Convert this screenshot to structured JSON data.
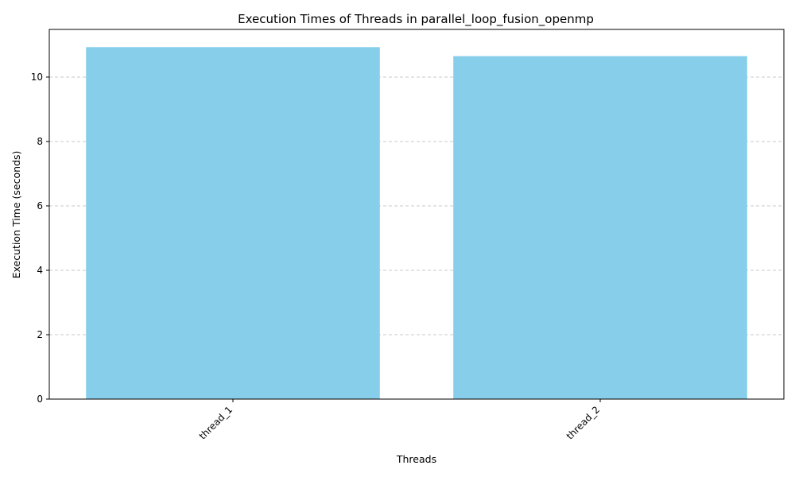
{
  "chart_data": {
    "type": "bar",
    "title": "Execution Times of Threads in parallel_loop_fusion_openmp",
    "xlabel": "Threads",
    "ylabel": "Execution Time (seconds)",
    "categories": [
      "thread_1",
      "thread_2"
    ],
    "values": [
      10.93,
      10.65
    ],
    "ylim": [
      0,
      11.48
    ],
    "yticks": [
      0,
      2,
      4,
      6,
      8,
      10
    ],
    "grid": "y-dashed",
    "bar_color": "#87ceeb",
    "grid_color": "#c8c8c8",
    "x_tick_rotation": "45"
  }
}
